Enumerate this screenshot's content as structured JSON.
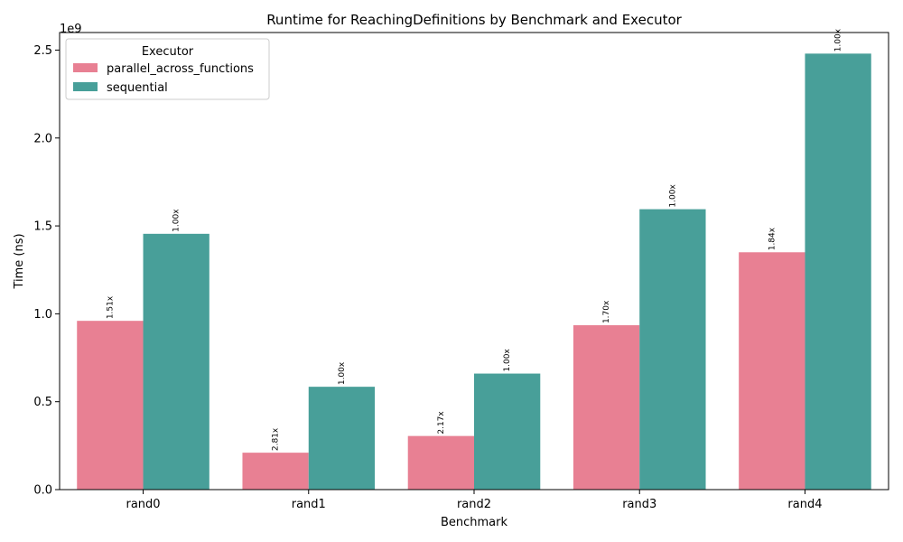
{
  "chart_data": {
    "type": "bar",
    "title": "Runtime for ReachingDefinitions by Benchmark and Executor",
    "xlabel": "Benchmark",
    "ylabel": "Time (ns)",
    "y_scale_label": "1e9",
    "categories": [
      "rand0",
      "rand1",
      "rand2",
      "rand3",
      "rand4"
    ],
    "ylim": [
      0,
      2.6
    ],
    "yticks": [
      0.0,
      0.5,
      1.0,
      1.5,
      2.0,
      2.5
    ],
    "ytick_labels": [
      "0.0",
      "0.5",
      "1.0",
      "1.5",
      "2.0",
      "2.5"
    ],
    "legend": {
      "title": "Executor",
      "position": "upper-left"
    },
    "series": [
      {
        "name": "parallel_across_functions",
        "color": "#e88093",
        "values": [
          0.96,
          0.21,
          0.305,
          0.935,
          1.35
        ],
        "labels": [
          "1.51x",
          "2.81x",
          "2.17x",
          "1.70x",
          "1.84x"
        ]
      },
      {
        "name": "sequential",
        "color": "#489f99",
        "values": [
          1.455,
          0.585,
          0.66,
          1.595,
          2.48
        ],
        "labels": [
          "1.00x",
          "1.00x",
          "1.00x",
          "1.00x",
          "1.00x"
        ]
      }
    ]
  }
}
